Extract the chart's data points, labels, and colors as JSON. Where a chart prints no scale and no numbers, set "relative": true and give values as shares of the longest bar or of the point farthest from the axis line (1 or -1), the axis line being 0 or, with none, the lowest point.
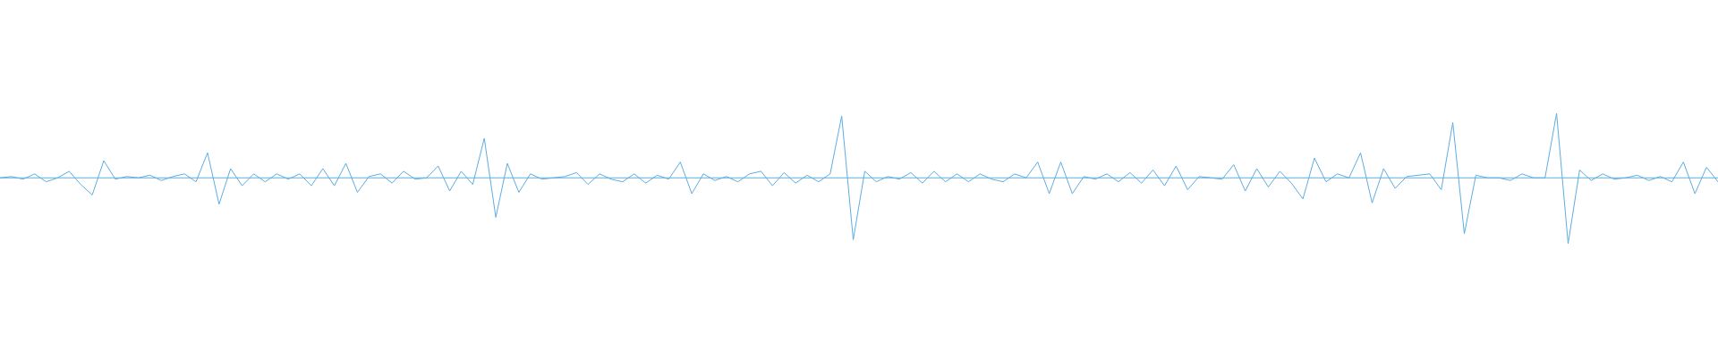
{
  "chart_data": {
    "type": "line",
    "relative": true,
    "color": "#5dade2",
    "ref_lines": [
      {
        "axis": "y",
        "value": 0,
        "color": "#5dade2"
      }
    ],
    "categories": [
      null,
      null,
      null,
      null,
      null,
      null,
      null,
      null,
      null,
      null,
      null,
      null,
      null,
      null,
      null,
      null,
      null,
      null,
      null,
      null,
      null,
      null,
      null,
      null,
      null,
      null,
      null,
      null,
      null,
      null,
      null,
      null,
      null,
      null,
      null,
      null,
      null,
      null,
      null,
      null,
      null,
      null,
      null,
      null,
      null,
      null,
      null,
      null,
      null,
      null,
      null,
      null,
      null,
      null,
      null,
      null,
      null,
      null,
      null,
      null,
      null,
      null,
      null,
      null,
      null,
      null,
      null,
      null,
      null,
      null,
      null,
      null,
      null,
      null,
      null,
      null,
      null,
      null,
      null,
      null,
      null,
      null,
      null,
      null,
      null,
      null,
      null,
      null,
      null,
      null,
      null,
      null,
      null,
      null,
      null,
      null,
      null,
      null,
      null,
      null,
      null,
      null,
      null,
      null,
      null,
      null,
      null,
      null,
      null,
      null,
      null,
      null,
      null,
      null,
      null,
      null,
      null,
      null,
      null,
      null,
      null,
      null,
      null,
      null,
      null,
      null,
      null,
      null,
      null,
      null,
      null,
      null,
      null,
      null,
      null,
      null,
      null,
      null,
      null,
      null,
      null,
      null,
      null,
      null,
      null,
      null,
      null,
      null,
      null,
      null
    ],
    "values": [
      0,
      0.02,
      -0.02,
      0.06,
      -0.06,
      0,
      0.1,
      -0.1,
      -0.26,
      0.26,
      -0.02,
      0.02,
      0,
      0.04,
      -0.04,
      0.02,
      0.06,
      -0.06,
      0.38,
      -0.4,
      0.14,
      -0.12,
      0.06,
      -0.06,
      0.06,
      -0.02,
      0.06,
      -0.12,
      0.14,
      -0.12,
      0.22,
      -0.22,
      0.02,
      0.06,
      -0.08,
      0.1,
      -0.02,
      0,
      0.18,
      -0.2,
      0.1,
      -0.1,
      0.6,
      -0.6,
      0.22,
      -0.22,
      0.06,
      -0.02,
      0,
      0.02,
      0.08,
      -0.1,
      0.06,
      -0.02,
      -0.06,
      0.06,
      -0.08,
      0.04,
      -0.02,
      0.24,
      -0.24,
      0.06,
      -0.04,
      0.02,
      -0.06,
      0.06,
      0.1,
      -0.12,
      0.08,
      -0.08,
      0.04,
      -0.06,
      0.06,
      0.94,
      -0.94,
      0.1,
      -0.06,
      0.02,
      -0.02,
      0.08,
      -0.08,
      0.1,
      -0.06,
      0.06,
      -0.06,
      0.06,
      -0.02,
      -0.06,
      0.06,
      0,
      0.24,
      -0.24,
      0.24,
      -0.24,
      0.02,
      -0.02,
      0.06,
      -0.06,
      0.08,
      -0.08,
      0.12,
      -0.12,
      0.18,
      -0.18,
      0.02,
      0,
      -0.02,
      0.2,
      -0.2,
      0.14,
      -0.14,
      0.1,
      -0.08,
      -0.32,
      0.3,
      -0.06,
      0.06,
      0,
      0.38,
      -0.38,
      0.14,
      -0.16,
      0.02,
      0.04,
      0.06,
      -0.18,
      0.84,
      -0.85,
      0.04,
      0,
      0,
      -0.04,
      0.06,
      0,
      0,
      0.98,
      -1,
      0.12,
      -0.04,
      0.06,
      -0.02,
      0,
      0.04,
      -0.04,
      0.02,
      -0.06,
      0.24,
      -0.24,
      0.16,
      -0.06
    ]
  }
}
